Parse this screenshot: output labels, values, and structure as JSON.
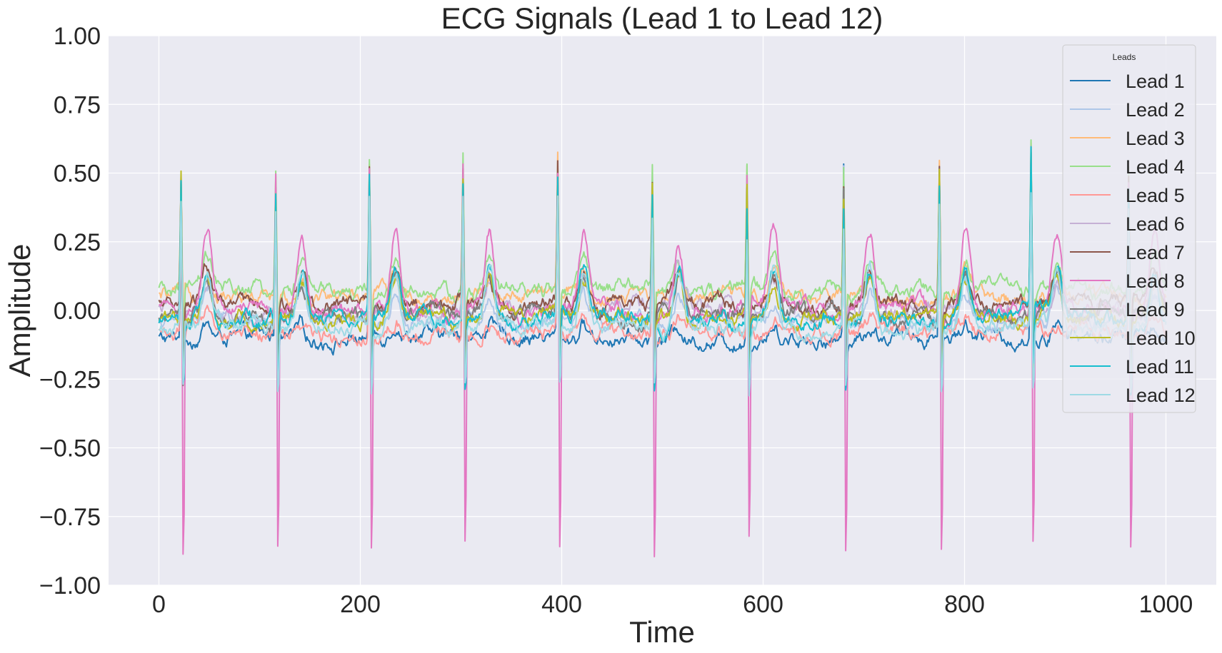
{
  "chart_data": {
    "type": "line",
    "title": "ECG Signals (Lead 1 to Lead 12)",
    "xlabel": "Time",
    "ylabel": "Amplitude",
    "xlim": [
      -50,
      1050
    ],
    "ylim": [
      -1.0,
      1.0
    ],
    "xticks": [
      0,
      200,
      400,
      600,
      800,
      1000
    ],
    "yticks": [
      -1.0,
      -0.75,
      -0.5,
      -0.25,
      0.0,
      0.25,
      0.5,
      0.75,
      1.0
    ],
    "xtick_labels": [
      "0",
      "200",
      "400",
      "600",
      "800",
      "1000"
    ],
    "ytick_labels": [
      "−1.00",
      "−0.75",
      "−0.50",
      "−0.25",
      "0.00",
      "0.25",
      "0.50",
      "0.75",
      "1.00"
    ],
    "grid": true,
    "legend": {
      "title": "Leads",
      "placement": "upper right"
    },
    "beats": [
      22,
      116,
      209,
      302,
      396,
      490,
      584,
      680,
      775,
      866,
      963
    ],
    "series": [
      {
        "name": "Lead 1",
        "color": "#1f77b4",
        "baseline": -0.1,
        "peaks": [
          0.38,
          0.52,
          0.56,
          0.63,
          0.64,
          0.57,
          0.62,
          0.64,
          0.54,
          0.62,
          0.52
        ],
        "trough": -0.18,
        "twave": 0.05
      },
      {
        "name": "Lead 2",
        "color": "#aec7e8",
        "baseline": -0.04,
        "peaks": [
          0.35,
          0.45,
          0.5,
          0.55,
          0.55,
          0.5,
          0.55,
          0.55,
          0.5,
          0.55,
          0.5
        ],
        "trough": -0.2,
        "twave": 0.1
      },
      {
        "name": "Lead 3",
        "color": "#ffbb78",
        "baseline": 0.05,
        "peaks": [
          0.4,
          0.45,
          0.5,
          0.5,
          0.5,
          0.45,
          0.45,
          0.45,
          0.5,
          0.6,
          0.45
        ],
        "trough": -0.2,
        "twave": 0.08
      },
      {
        "name": "Lead 4",
        "color": "#98df8a",
        "baseline": 0.07,
        "peaks": [
          0.4,
          0.45,
          0.5,
          0.5,
          0.45,
          0.45,
          0.45,
          0.45,
          0.5,
          0.55,
          0.45
        ],
        "trough": -0.22,
        "twave": 0.12
      },
      {
        "name": "Lead 5",
        "color": "#ff9896",
        "baseline": -0.08,
        "peaks": [
          0.4,
          0.45,
          0.54,
          0.5,
          0.5,
          0.45,
          0.47,
          0.45,
          0.5,
          0.6,
          0.45
        ],
        "trough": -0.2,
        "twave": 0.05
      },
      {
        "name": "Lead 6",
        "color": "#c5b0d5",
        "baseline": 0.0,
        "peaks": [
          0.4,
          0.45,
          0.5,
          0.5,
          0.5,
          0.45,
          0.45,
          0.45,
          0.5,
          0.55,
          0.45
        ],
        "trough": -0.25,
        "twave": 0.12
      },
      {
        "name": "Lead 7",
        "color": "#8c564b",
        "baseline": 0.02,
        "peaks": [
          0.45,
          0.45,
          0.5,
          0.5,
          0.5,
          0.45,
          0.45,
          0.45,
          0.5,
          0.55,
          0.45
        ],
        "trough": -0.25,
        "twave": 0.12
      },
      {
        "name": "Lead 8",
        "color": "#e377c2",
        "baseline": 0.0,
        "peaks": [
          0.5,
          0.5,
          0.53,
          0.52,
          0.5,
          0.5,
          0.47,
          0.45,
          0.5,
          0.6,
          0.45
        ],
        "trough": -1.05,
        "twave": 0.29
      },
      {
        "name": "Lead 9",
        "color": "#7f7f7f",
        "baseline": -0.01,
        "peaks": [
          0.45,
          0.45,
          0.5,
          0.5,
          0.5,
          0.45,
          0.45,
          0.45,
          0.5,
          0.55,
          0.45
        ],
        "trough": -0.3,
        "twave": 0.14
      },
      {
        "name": "Lead 10",
        "color": "#bcbd22",
        "baseline": -0.02,
        "peaks": [
          0.54,
          0.45,
          0.5,
          0.5,
          0.45,
          0.5,
          0.45,
          0.45,
          0.5,
          0.6,
          0.45
        ],
        "trough": -0.3,
        "twave": 0.14
      },
      {
        "name": "Lead 11",
        "color": "#17becf",
        "baseline": -0.03,
        "peaks": [
          0.5,
          0.45,
          0.5,
          0.51,
          0.5,
          0.45,
          0.45,
          0.43,
          0.5,
          0.55,
          0.5
        ],
        "trough": -0.3,
        "twave": 0.18
      },
      {
        "name": "Lead 12",
        "color": "#9edae5",
        "baseline": -0.06,
        "peaks": [
          0.45,
          0.42,
          0.48,
          0.45,
          0.45,
          0.4,
          0.33,
          0.35,
          0.45,
          0.5,
          0.45
        ],
        "trough": -0.28,
        "twave": 0.2
      }
    ]
  }
}
